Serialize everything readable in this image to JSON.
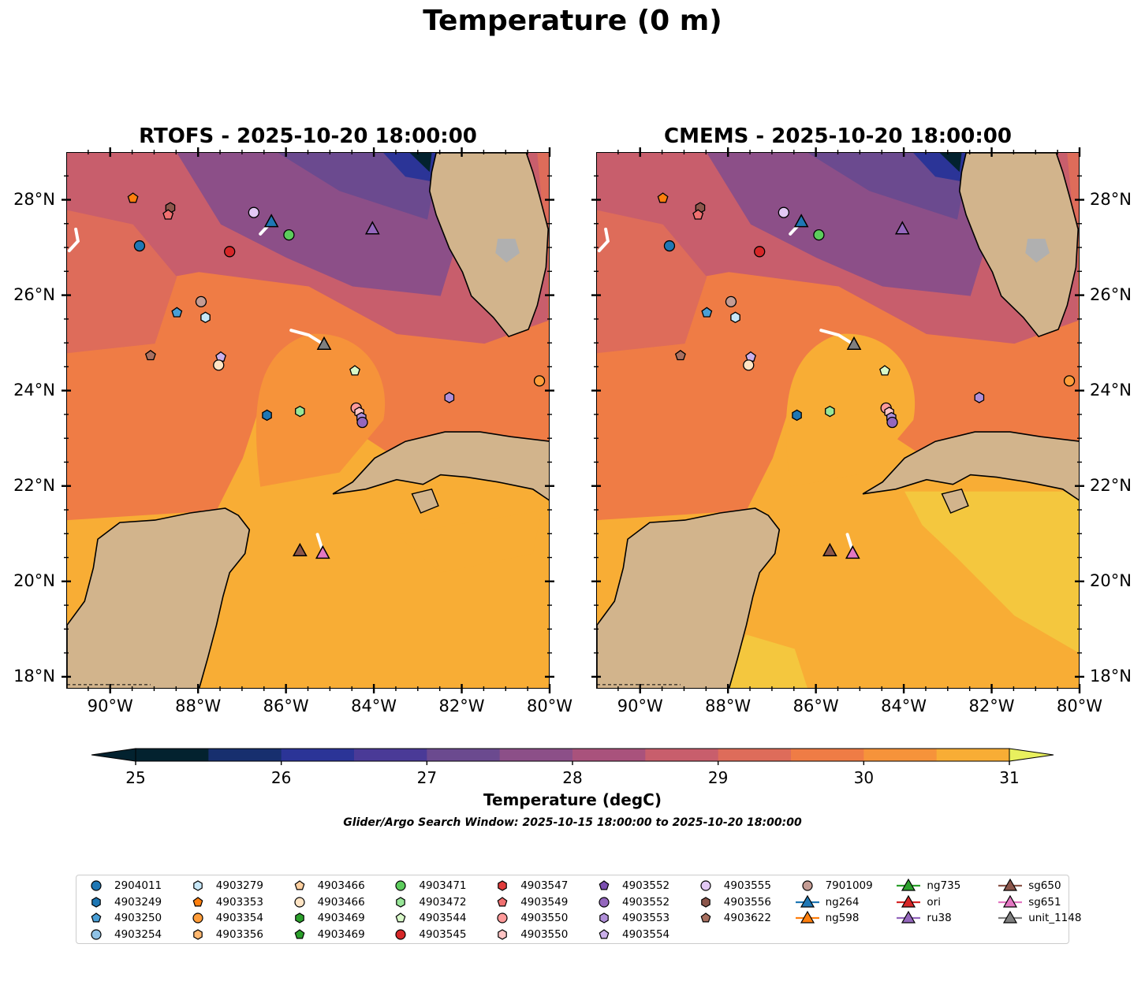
{
  "title": "Temperature (0 m)",
  "panels": [
    {
      "title": "RTOFS - 2025-10-20 18:00:00",
      "model": "rtofs"
    },
    {
      "title": "CMEMS - 2025-10-20 18:00:00",
      "model": "cmems"
    }
  ],
  "axes": {
    "lat_ticks": [
      "28°N",
      "26°N",
      "24°N",
      "22°N",
      "20°N",
      "18°N"
    ],
    "lon_ticks": [
      "90°W",
      "88°W",
      "86°W",
      "84°W",
      "82°W",
      "80°W"
    ]
  },
  "colorbar": {
    "label": "Temperature (degC)",
    "ticks": [
      "25",
      "26",
      "27",
      "28",
      "29",
      "30",
      "31"
    ],
    "vmin": 25,
    "vmax": 31,
    "step": 0.5,
    "colors": [
      "#03222f",
      "#172f6e",
      "#2b3497",
      "#4a3a97",
      "#6b4a8f",
      "#8c4f88",
      "#a9527c",
      "#c85e6c",
      "#de6c5a",
      "#ef7c45",
      "#f6933a",
      "#f8ad35",
      "#f4c73e",
      "#e8f05e"
    ],
    "under_color": "#03222f",
    "over_color": "#e8f05e"
  },
  "subtitle": "Glider/Argo Search Window: 2025-10-15 18:00:00 to 2025-10-20 18:00:00",
  "legend": {
    "columns": [
      [
        {
          "label": "2904011",
          "marker": "circle",
          "color": "#1f77b4"
        },
        {
          "label": "4903249",
          "marker": "hexagon",
          "color": "#1f77b4"
        },
        {
          "label": "4903250",
          "marker": "pentagon",
          "color": "#4a9fd6"
        },
        {
          "label": "4903254",
          "marker": "circle",
          "color": "#8fc2e6"
        }
      ],
      [
        {
          "label": "4903279",
          "marker": "hexagon",
          "color": "#c7e7f7"
        },
        {
          "label": "4903353",
          "marker": "pentagon",
          "color": "#ff7f0e"
        },
        {
          "label": "4903354",
          "marker": "circle",
          "color": "#ff9d3a"
        },
        {
          "label": "4903356",
          "marker": "hexagon",
          "color": "#ffb870"
        }
      ],
      [
        {
          "label": "4903466",
          "marker": "pentagon",
          "color": "#ffd0a0"
        },
        {
          "label": "4903466",
          "marker": "circle",
          "color": "#ffe4c4"
        },
        {
          "label": "4903469",
          "marker": "hexagon",
          "color": "#2ca02c"
        },
        {
          "label": "4903469",
          "marker": "pentagon",
          "color": "#2ca02c"
        }
      ],
      [
        {
          "label": "4903471",
          "marker": "circle",
          "color": "#5ccc5c"
        },
        {
          "label": "4903472",
          "marker": "hexagon",
          "color": "#98e698"
        },
        {
          "label": "4903544",
          "marker": "pentagon",
          "color": "#d8f8c8"
        },
        {
          "label": "4903545",
          "marker": "circle",
          "color": "#d62728"
        }
      ],
      [
        {
          "label": "4903547",
          "marker": "hexagon",
          "color": "#e03b3b"
        },
        {
          "label": "4903549",
          "marker": "pentagon",
          "color": "#f07070"
        },
        {
          "label": "4903550",
          "marker": "circle",
          "color": "#ff9a9a"
        },
        {
          "label": "4903550",
          "marker": "hexagon",
          "color": "#ffc4c4"
        }
      ],
      [
        {
          "label": "4903552",
          "marker": "pentagon",
          "color": "#7b4fb0"
        },
        {
          "label": "4903552",
          "marker": "circle",
          "color": "#9467bd"
        },
        {
          "label": "4903553",
          "marker": "hexagon",
          "color": "#b08fd8"
        },
        {
          "label": "4903554",
          "marker": "pentagon",
          "color": "#cbb0ea"
        }
      ],
      [
        {
          "label": "4903555",
          "marker": "circle",
          "color": "#e2c8f4"
        },
        {
          "label": "4903556",
          "marker": "hexagon",
          "color": "#8c564b"
        },
        {
          "label": "4903622",
          "marker": "pentagon",
          "color": "#a87060"
        }
      ],
      [
        {
          "label": "7901009",
          "marker": "circle",
          "color": "#c49c94"
        },
        {
          "label": "ng264",
          "marker": "triangle-line",
          "color": "#1f77b4"
        },
        {
          "label": "ng598",
          "marker": "triangle-line",
          "color": "#ff7f0e"
        }
      ],
      [
        {
          "label": "ng735",
          "marker": "triangle-line",
          "color": "#2ca02c"
        },
        {
          "label": "ori",
          "marker": "triangle-line",
          "color": "#d62728"
        },
        {
          "label": "ru38",
          "marker": "triangle-line",
          "color": "#9467bd"
        }
      ],
      [
        {
          "label": "sg650",
          "marker": "triangle-line",
          "color": "#8c564b"
        },
        {
          "label": "sg651",
          "marker": "triangle-line",
          "color": "#e377c2"
        },
        {
          "label": "unit_1148",
          "marker": "triangle-line",
          "color": "#7f7f7f"
        }
      ]
    ]
  },
  "map": {
    "lon_range": [
      -91.0,
      -80.0
    ],
    "lat_range": [
      17.75,
      29.0
    ],
    "land_color": "#d2b48c",
    "shelf_color": "#9ab6d8",
    "track_color": "#ffffff",
    "floats": [
      {
        "id": "4903353",
        "lon": -89.5,
        "lat": 28.05,
        "marker": "pentagon",
        "color": "#ff7f0e"
      },
      {
        "id": "4903556",
        "lon": -88.65,
        "lat": 27.85,
        "marker": "hexagon",
        "color": "#8c564b"
      },
      {
        "id": "4903549",
        "lon": -88.7,
        "lat": 27.7,
        "marker": "pentagon",
        "color": "#f07070"
      },
      {
        "id": "2904011",
        "lon": -89.35,
        "lat": 27.05,
        "marker": "circle",
        "color": "#1f77b4"
      },
      {
        "id": "4903545",
        "lon": -87.3,
        "lat": 26.93,
        "marker": "circle",
        "color": "#d62728"
      },
      {
        "id": "4903555",
        "lon": -86.75,
        "lat": 27.75,
        "marker": "circle",
        "color": "#e2c8f4"
      },
      {
        "id": "4903471",
        "lon": -85.95,
        "lat": 27.28,
        "marker": "circle",
        "color": "#5ccc5c"
      },
      {
        "id": "7901009",
        "lon": -87.95,
        "lat": 25.88,
        "marker": "circle",
        "color": "#c49c94"
      },
      {
        "id": "4903250",
        "lon": -88.5,
        "lat": 25.65,
        "marker": "pentagon",
        "color": "#4a9fd6"
      },
      {
        "id": "4903279",
        "lon": -87.85,
        "lat": 25.55,
        "marker": "hexagon",
        "color": "#c7e7f7"
      },
      {
        "id": "4903622",
        "lon": -89.1,
        "lat": 24.75,
        "marker": "pentagon",
        "color": "#a87060"
      },
      {
        "id": "4903554",
        "lon": -87.5,
        "lat": 24.72,
        "marker": "pentagon",
        "color": "#cbb0ea"
      },
      {
        "id": "4903466",
        "lon": -87.55,
        "lat": 24.55,
        "marker": "circle",
        "color": "#ffe4c4"
      },
      {
        "id": "4903544",
        "lon": -84.45,
        "lat": 24.43,
        "marker": "pentagon",
        "color": "#d8f8c8"
      },
      {
        "id": "4903354",
        "lon": -80.25,
        "lat": 24.22,
        "marker": "circle",
        "color": "#ff9d3a"
      },
      {
        "id": "4903553",
        "lon": -82.3,
        "lat": 23.87,
        "marker": "hexagon",
        "color": "#b08fd8"
      },
      {
        "id": "4903472",
        "lon": -85.7,
        "lat": 23.58,
        "marker": "hexagon",
        "color": "#98e698"
      },
      {
        "id": "4903249",
        "lon": -86.45,
        "lat": 23.5,
        "marker": "hexagon",
        "color": "#1f77b4"
      },
      {
        "id": "4903550",
        "lon": -84.42,
        "lat": 23.65,
        "marker": "circle",
        "color": "#ff9a9a"
      },
      {
        "id": "4903550b",
        "lon": -84.35,
        "lat": 23.56,
        "marker": "hexagon",
        "color": "#ffc4c4"
      },
      {
        "id": "4903553b",
        "lon": -84.3,
        "lat": 23.45,
        "marker": "hexagon",
        "color": "#b08fd8"
      },
      {
        "id": "4903552",
        "lon": -84.28,
        "lat": 23.35,
        "marker": "circle",
        "color": "#9467bd"
      }
    ],
    "gliders": [
      {
        "id": "ng264",
        "lon": -86.35,
        "lat": 27.55,
        "color": "#1f77b4"
      },
      {
        "id": "ru38",
        "lon": -84.05,
        "lat": 27.4,
        "color": "#9467bd"
      },
      {
        "id": "unit_1148",
        "lon": -85.15,
        "lat": 24.98,
        "color": "#7f7f7f"
      },
      {
        "id": "sg650",
        "lon": -85.7,
        "lat": 20.65,
        "color": "#8c564b"
      },
      {
        "id": "sg651",
        "lon": -85.18,
        "lat": 20.6,
        "color": "#e377c2"
      }
    ],
    "tracks": [
      [
        [
          -86.6,
          27.3
        ],
        [
          -86.45,
          27.45
        ],
        [
          -86.35,
          27.55
        ]
      ],
      [
        [
          -85.9,
          25.28
        ],
        [
          -85.5,
          25.18
        ],
        [
          -85.15,
          24.98
        ]
      ],
      [
        [
          -85.3,
          21.0
        ],
        [
          -85.18,
          20.65
        ]
      ],
      [
        [
          -90.8,
          27.4
        ],
        [
          -90.75,
          27.15
        ],
        [
          -90.95,
          26.95
        ]
      ]
    ]
  }
}
